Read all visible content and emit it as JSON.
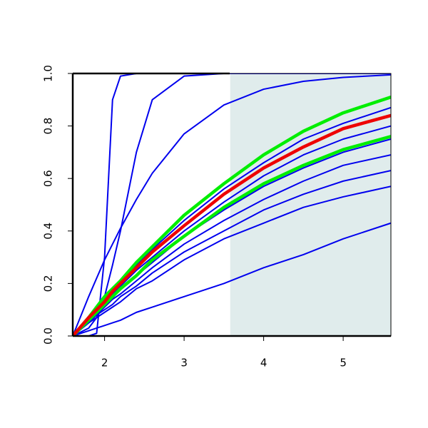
{
  "chart_data": {
    "type": "line",
    "x": [
      1.6,
      1.8,
      1.9,
      2.0,
      2.1,
      2.2,
      2.4,
      2.6,
      3.0,
      3.5,
      4.0,
      4.5,
      5.0,
      5.6
    ],
    "xlim": [
      1.6,
      5.6
    ],
    "xticks": [
      2,
      3,
      4,
      5
    ],
    "ylim": [
      0,
      1
    ],
    "yticks": [
      {
        "value": 0,
        "label": "0.0"
      },
      {
        "value": 0.2,
        "label": "0.2"
      },
      {
        "value": 0.4,
        "label": "0.4"
      },
      {
        "value": 0.6,
        "label": "0.6"
      },
      {
        "value": 0.8,
        "label": "0.8"
      },
      {
        "value": 1,
        "label": "1.0"
      }
    ],
    "shade_x": [
      3.58,
      5.6
    ],
    "shade_color": "#e0ecec",
    "series": [
      {
        "color": "#0000ee",
        "values": [
          0,
          0,
          0.01,
          0.3,
          0.9,
          0.99,
          1,
          1,
          1,
          1,
          1,
          1,
          1,
          1
        ]
      },
      {
        "color": "#0000ee",
        "values": [
          0,
          0.03,
          0.07,
          0.15,
          0.27,
          0.4,
          0.7,
          0.9,
          0.99,
          1,
          1,
          1,
          1,
          1
        ]
      },
      {
        "color": "#0000ee",
        "values": [
          0,
          0.15,
          0.22,
          0.29,
          0.35,
          0.41,
          0.52,
          0.62,
          0.77,
          0.88,
          0.94,
          0.97,
          0.985,
          0.995
        ]
      },
      {
        "color": "#0000ee",
        "values": [
          0,
          0.07,
          0.11,
          0.14,
          0.17,
          0.2,
          0.27,
          0.33,
          0.44,
          0.56,
          0.66,
          0.75,
          0.81,
          0.87
        ]
      },
      {
        "color": "#0000ee",
        "values": [
          0,
          0.07,
          0.1,
          0.13,
          0.16,
          0.19,
          0.25,
          0.3,
          0.4,
          0.51,
          0.61,
          0.69,
          0.75,
          0.8
        ]
      },
      {
        "color": "#0000ee",
        "values": [
          0,
          0.06,
          0.09,
          0.12,
          0.15,
          0.18,
          0.23,
          0.28,
          0.38,
          0.48,
          0.57,
          0.64,
          0.7,
          0.75
        ]
      },
      {
        "color": "#0000ee",
        "values": [
          0,
          0.06,
          0.08,
          0.11,
          0.14,
          0.16,
          0.21,
          0.26,
          0.35,
          0.44,
          0.52,
          0.59,
          0.65,
          0.69
        ]
      },
      {
        "color": "#0000ee",
        "values": [
          0,
          0.05,
          0.08,
          0.1,
          0.12,
          0.15,
          0.19,
          0.24,
          0.32,
          0.4,
          0.48,
          0.54,
          0.59,
          0.63
        ]
      },
      {
        "color": "#0000ee",
        "values": [
          0,
          0.05,
          0.07,
          0.09,
          0.11,
          0.13,
          0.18,
          0.21,
          0.29,
          0.37,
          0.43,
          0.49,
          0.53,
          0.57
        ]
      },
      {
        "color": "#0000ee",
        "values": [
          0,
          0.02,
          0.03,
          0.04,
          0.05,
          0.06,
          0.09,
          0.11,
          0.15,
          0.2,
          0.26,
          0.31,
          0.37,
          0.43
        ]
      },
      {
        "color": "#00ee00",
        "values": [
          0,
          0.07,
          0.11,
          0.15,
          0.18,
          0.21,
          0.28,
          0.34,
          0.46,
          0.58,
          0.69,
          0.78,
          0.85,
          0.91
        ]
      },
      {
        "color": "#00ee00",
        "values": [
          0,
          0.06,
          0.09,
          0.12,
          0.15,
          0.18,
          0.23,
          0.29,
          0.38,
          0.49,
          0.58,
          0.65,
          0.71,
          0.76
        ]
      },
      {
        "color": "#ee0000",
        "values": [
          0,
          0.07,
          0.1,
          0.13,
          0.17,
          0.2,
          0.26,
          0.32,
          0.42,
          0.54,
          0.64,
          0.72,
          0.79,
          0.84
        ]
      }
    ]
  }
}
